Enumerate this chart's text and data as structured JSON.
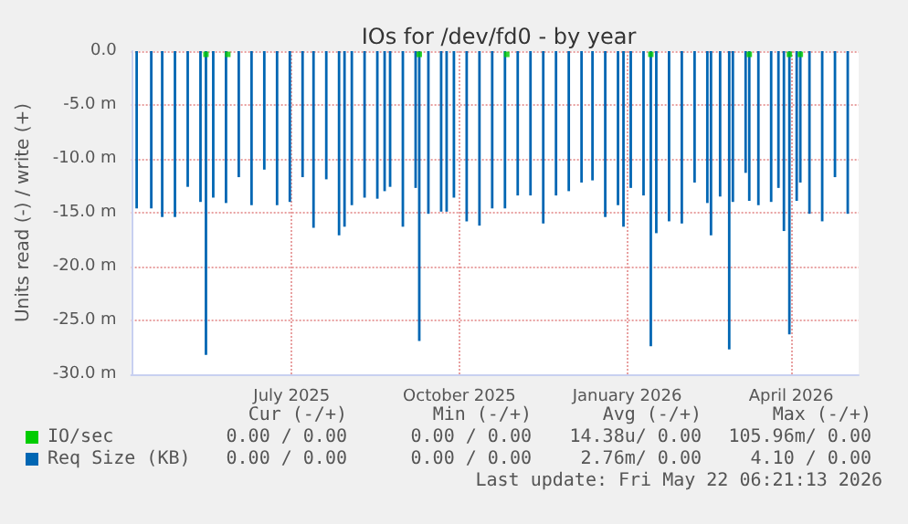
{
  "chart_data": {
    "type": "bar",
    "title": "IOs for /dev/fd0 - by year",
    "ylabel": "Units read (-) / write (+)",
    "xlim": [
      "2025-04-19",
      "2026-05-23"
    ],
    "xticks": [
      {
        "value": "2025-07-16",
        "label": "July 2025"
      },
      {
        "value": "2025-10-16",
        "label": "October 2025"
      },
      {
        "value": "2026-01-16",
        "label": "January 2026"
      },
      {
        "value": "2026-04-16",
        "label": "April 2026"
      }
    ],
    "ylim": [
      -30,
      0
    ],
    "yticks": [
      {
        "value": -30,
        "label": "-30.0 m"
      },
      {
        "value": -25,
        "label": "-25.0 m"
      },
      {
        "value": -20,
        "label": "-20.0 m"
      },
      {
        "value": -15,
        "label": "-15.0 m"
      },
      {
        "value": -10,
        "label": "-10.0 m"
      },
      {
        "value": -5,
        "label": "-5.0 m"
      },
      {
        "value": 0,
        "label": "0.0"
      }
    ],
    "grid": true,
    "legend": "bottom",
    "marker": "square",
    "series": [
      {
        "name": "IO/sec",
        "type": "scatter",
        "color": "#00cc00",
        "x": [
          "2025-05-30",
          "2025-06-11",
          "2025-09-24",
          "2025-11-11",
          "2026-01-29",
          "2026-03-24",
          "2026-04-15",
          "2026-04-21"
        ],
        "values": [
          -0.3,
          -0.3,
          -0.3,
          -0.3,
          -0.3,
          -0.3,
          -0.3,
          -0.3
        ]
      },
      {
        "name": "Req Size (KB)",
        "color": "#0066b3",
        "x": [
          "2025-04-22",
          "2025-04-30",
          "2025-05-06",
          "2025-05-13",
          "2025-05-20",
          "2025-05-27",
          "2025-05-30",
          "2025-06-03",
          "2025-06-10",
          "2025-06-17",
          "2025-06-24",
          "2025-07-01",
          "2025-07-08",
          "2025-07-15",
          "2025-07-22",
          "2025-07-28",
          "2025-08-04",
          "2025-08-11",
          "2025-08-14",
          "2025-08-18",
          "2025-08-25",
          "2025-09-01",
          "2025-09-05",
          "2025-09-08",
          "2025-09-15",
          "2025-09-22",
          "2025-09-24",
          "2025-09-29",
          "2025-10-06",
          "2025-10-09",
          "2025-10-13",
          "2025-10-20",
          "2025-10-27",
          "2025-11-03",
          "2025-11-10",
          "2025-11-17",
          "2025-11-24",
          "2025-12-01",
          "2025-12-08",
          "2025-12-15",
          "2025-12-22",
          "2025-12-28",
          "2026-01-04",
          "2026-01-11",
          "2026-01-14",
          "2026-01-18",
          "2026-01-25",
          "2026-01-29",
          "2026-02-01",
          "2026-02-08",
          "2026-02-15",
          "2026-02-22",
          "2026-03-01",
          "2026-03-03",
          "2026-03-08",
          "2026-03-13",
          "2026-03-15",
          "2026-03-22",
          "2026-03-24",
          "2026-03-29",
          "2026-04-05",
          "2026-04-09",
          "2026-04-12",
          "2026-04-15",
          "2026-04-19",
          "2026-04-21",
          "2026-04-26",
          "2026-05-03",
          "2026-05-10",
          "2026-05-17"
        ],
        "values": [
          -14.6,
          -14.6,
          -15.4,
          -15.4,
          -12.6,
          -14.0,
          -28.2,
          -13.6,
          -14.1,
          -11.7,
          -14.3,
          -11.0,
          -14.3,
          -14.0,
          -11.7,
          -16.4,
          -11.9,
          -17.1,
          -16.3,
          -14.3,
          -13.6,
          -13.7,
          -13.0,
          -12.6,
          -16.3,
          -12.7,
          -26.9,
          -15.1,
          -14.9,
          -14.9,
          -13.6,
          -15.8,
          -16.2,
          -14.6,
          -14.6,
          -13.4,
          -13.4,
          -16.0,
          -13.4,
          -13.0,
          -12.2,
          -12.0,
          -15.4,
          -14.3,
          -16.3,
          -12.7,
          -13.4,
          -27.4,
          -16.9,
          -15.8,
          -16.0,
          -12.2,
          -14.1,
          -17.1,
          -13.5,
          -27.7,
          -14.0,
          -11.3,
          -13.9,
          -14.3,
          -14.0,
          -12.7,
          -16.7,
          -26.3,
          -13.9,
          -12.2,
          -15.1,
          -15.8,
          -11.7,
          -15.1
        ]
      }
    ],
    "annotations": [
      "Cur (-/+)",
      "Min (-/+)",
      "Avg (-/+)",
      "Max (-/+)",
      "0.00 / 0.00",
      "0.00 / 0.00",
      "14.38u/ 0.00",
      "105.96m/ 0.00",
      "0.00 / 0.00",
      "0.00 / 0.00",
      "2.76m/ 0.00",
      "4.10 / 0.00",
      "Last update: Fri May 22 06:21:13 2026"
    ]
  }
}
